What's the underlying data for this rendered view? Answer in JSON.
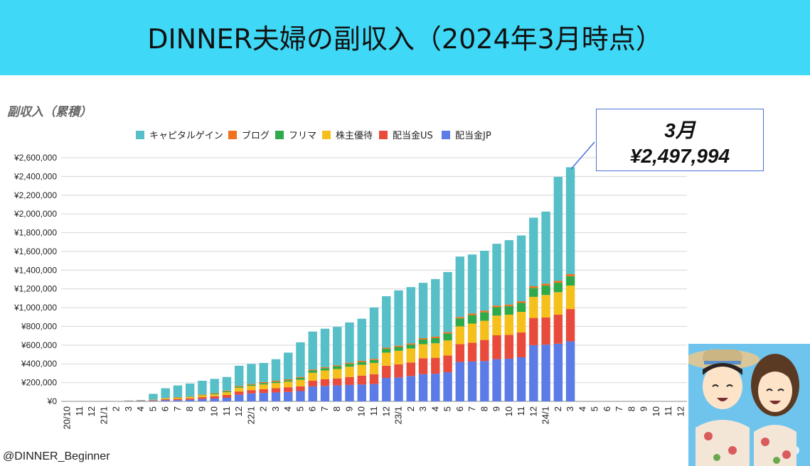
{
  "header": {
    "title": "DINNER夫婦の副収入（2024年3月時点）"
  },
  "chart_subtitle": "副収入（累積）",
  "callout": {
    "month": "3月",
    "value": "¥2,497,994"
  },
  "credit": "@DINNER_Beginner",
  "chart_data": {
    "type": "bar",
    "stacked": true,
    "ylim": [
      0,
      2600000
    ],
    "yticks": [
      0,
      200000,
      400000,
      600000,
      800000,
      1000000,
      1200000,
      1400000,
      1600000,
      1800000,
      2000000,
      2200000,
      2400000,
      2600000
    ],
    "ytick_labels": [
      "¥0",
      "¥200,000",
      "¥400,000",
      "¥600,000",
      "¥800,000",
      "¥1,000,000",
      "¥1,200,000",
      "¥1,400,000",
      "¥1,600,000",
      "¥1,800,000",
      "¥2,000,000",
      "¥2,200,000",
      "¥2,400,000",
      "¥2,600,000"
    ],
    "legend_position": "top",
    "grid": true,
    "categories": [
      "20/10",
      "11",
      "12",
      "21/1",
      "2",
      "3",
      "4",
      "5",
      "6",
      "7",
      "8",
      "9",
      "10",
      "11",
      "12",
      "22/1",
      "2",
      "3",
      "4",
      "5",
      "6",
      "7",
      "8",
      "9",
      "10",
      "11",
      "12",
      "23/1",
      "2",
      "3",
      "4",
      "5",
      "6",
      "7",
      "8",
      "9",
      "10",
      "11",
      "12",
      "24/1",
      "2",
      "3",
      "4",
      "5",
      "6",
      "7",
      "8",
      "9",
      "10",
      "11",
      "12"
    ],
    "series": [
      {
        "name": "配当金JP",
        "color": "#5b7be6",
        "values": [
          0,
          0,
          0,
          0,
          0,
          3000,
          5000,
          7000,
          12000,
          14000,
          17000,
          25000,
          30000,
          38000,
          70000,
          85000,
          90000,
          95000,
          100000,
          110000,
          160000,
          165000,
          170000,
          175000,
          180000,
          185000,
          250000,
          255000,
          270000,
          290000,
          295000,
          310000,
          420000,
          425000,
          430000,
          450000,
          455000,
          470000,
          600000,
          605000,
          615000,
          640000,
          0,
          0,
          0,
          0,
          0,
          0,
          0,
          0,
          0
        ]
      },
      {
        "name": "配当金US",
        "color": "#e84b3c",
        "values": [
          0,
          0,
          0,
          0,
          0,
          2000,
          3000,
          6000,
          10000,
          12000,
          15000,
          20000,
          25000,
          30000,
          35000,
          35000,
          40000,
          45000,
          50000,
          50000,
          60000,
          70000,
          75000,
          85000,
          95000,
          105000,
          130000,
          140000,
          145000,
          170000,
          170000,
          180000,
          190000,
          200000,
          225000,
          255000,
          255000,
          265000,
          290000,
          290000,
          310000,
          345000,
          0,
          0,
          0,
          0,
          0,
          0,
          0,
          0,
          0
        ]
      },
      {
        "name": "株主優待",
        "color": "#f5c01b",
        "values": [
          0,
          0,
          0,
          0,
          0,
          2000,
          3000,
          5000,
          10000,
          12000,
          15000,
          20000,
          20000,
          30000,
          40000,
          45000,
          50000,
          55000,
          60000,
          70000,
          85000,
          95000,
          100000,
          110000,
          115000,
          120000,
          140000,
          145000,
          150000,
          150000,
          155000,
          160000,
          190000,
          205000,
          205000,
          210000,
          215000,
          220000,
          225000,
          240000,
          240000,
          250000,
          0,
          0,
          0,
          0,
          0,
          0,
          0,
          0,
          0
        ]
      },
      {
        "name": "フリマ",
        "color": "#2eaa4a",
        "values": [
          0,
          0,
          0,
          0,
          0,
          0,
          0,
          0,
          3000,
          5000,
          5000,
          5000,
          8000,
          10000,
          12000,
          12000,
          15000,
          15000,
          15000,
          20000,
          25000,
          25000,
          30000,
          30000,
          30000,
          30000,
          40000,
          40000,
          40000,
          50000,
          55000,
          75000,
          85000,
          90000,
          90000,
          90000,
          90000,
          95000,
          95000,
          100000,
          100000,
          100000,
          0,
          0,
          0,
          0,
          0,
          0,
          0,
          0,
          0
        ]
      },
      {
        "name": "ブログ",
        "color": "#f2711c",
        "values": [
          0,
          0,
          0,
          0,
          0,
          0,
          0,
          0,
          2000,
          3000,
          3000,
          5000,
          5000,
          7000,
          8000,
          8000,
          10000,
          10000,
          10000,
          10000,
          10000,
          10000,
          10000,
          12000,
          12000,
          12000,
          12000,
          14000,
          14000,
          15000,
          15000,
          15000,
          15000,
          17000,
          17000,
          17000,
          18000,
          18000,
          18000,
          20000,
          20000,
          22000,
          0,
          0,
          0,
          0,
          0,
          0,
          0,
          0,
          0
        ]
      },
      {
        "name": "キャピタルゲイン",
        "color": "#56bfc8",
        "values": [
          0,
          0,
          0,
          0,
          0,
          3000,
          4000,
          62000,
          103000,
          124000,
          135000,
          145000,
          152000,
          145000,
          215000,
          215000,
          205000,
          230000,
          285000,
          370000,
          405000,
          410000,
          410000,
          430000,
          450000,
          550000,
          550000,
          590000,
          600000,
          590000,
          615000,
          640000,
          645000,
          630000,
          640000,
          660000,
          687000,
          702000,
          732000,
          770000,
          1110000,
          1140994,
          0,
          0,
          0,
          0,
          0,
          0,
          0,
          0,
          0
        ]
      }
    ]
  }
}
